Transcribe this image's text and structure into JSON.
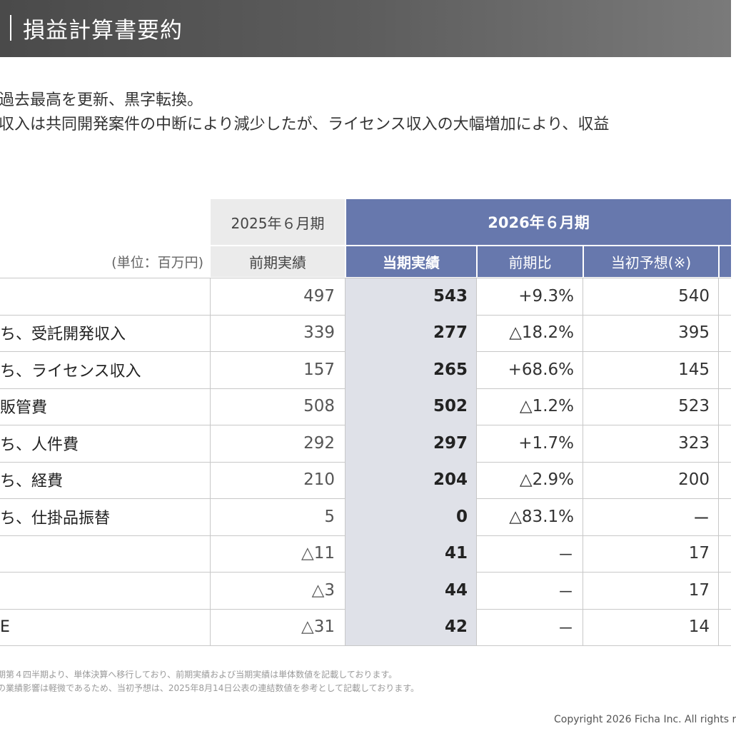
{
  "header": {
    "title": "損益計算書要約"
  },
  "summary": {
    "line1": "過去最高を更新、黒字転換。",
    "line2": "収入は共同開発案件の中断により減少したが、ライセンス収入の大幅増加により、収益"
  },
  "table": {
    "unit": "(単位：百万円)",
    "prev_period": "2025年６月期",
    "cur_period": "2026年６月期",
    "col_prev": "前期実績",
    "col_cur": "当期実績",
    "col_yoy": "前期比",
    "col_plan": "当初予想(※)",
    "rows": [
      {
        "label": "",
        "prev": "497",
        "cur": "543",
        "yoy": "+9.3%",
        "plan": "540"
      },
      {
        "label": "ち、受託開発収入",
        "prev": "339",
        "cur": "277",
        "yoy": "△18.2%",
        "plan": "395"
      },
      {
        "label": "ち、ライセンス収入",
        "prev": "157",
        "cur": "265",
        "yoy": "+68.6%",
        "plan": "145"
      },
      {
        "label": "販管費",
        "prev": "508",
        "cur": "502",
        "yoy": "△1.2%",
        "plan": "523"
      },
      {
        "label": "ち、人件費",
        "prev": "292",
        "cur": "297",
        "yoy": "+1.7%",
        "plan": "323"
      },
      {
        "label": "ち、経費",
        "prev": "210",
        "cur": "204",
        "yoy": "△2.9%",
        "plan": "200"
      },
      {
        "label": "ち、仕掛品振替",
        "prev": "5",
        "cur": "0",
        "yoy": "△83.1%",
        "plan": "ー"
      },
      {
        "label": "",
        "prev": "△11",
        "cur": "41",
        "yoy": "－",
        "plan": "17"
      },
      {
        "label": "",
        "prev": "△3",
        "cur": "44",
        "yoy": "－",
        "plan": "17"
      },
      {
        "label": "E",
        "prev": "△31",
        "cur": "42",
        "yoy": "－",
        "plan": "14"
      }
    ]
  },
  "notes": {
    "line1": "期第４四半期より、単体決算へ移行しており、前期実績および当期実績は単体数値を記載しております。",
    "line2": "の業績影響は軽微であるため、当初予想は、2025年8月14日公表の連結数値を参考として記載しております。"
  },
  "footer": {
    "copyright": "Copyright 2026 Ficha Inc. All rights r"
  }
}
